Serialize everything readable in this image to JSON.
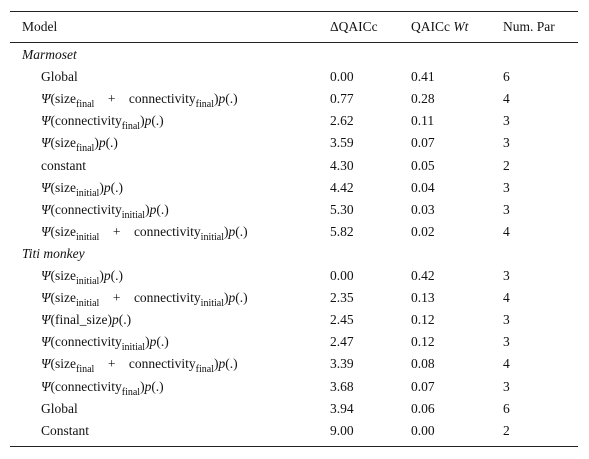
{
  "header": [
    [
      {
        "text": "Model"
      }
    ],
    [
      {
        "text": "ΔQAICc"
      }
    ],
    [
      {
        "text": "QAICc "
      },
      {
        "text": "Wt",
        "style": "italic"
      }
    ],
    [
      {
        "text": "Num. Par"
      }
    ]
  ],
  "groups": [
    {
      "label": "Marmoset",
      "rows": [
        {
          "model": [
            {
              "text": "Global"
            }
          ],
          "dqaicc": "0.00",
          "wt": "0.41",
          "par": "6"
        },
        {
          "model": [
            {
              "text": "Ψ",
              "style": "italic"
            },
            {
              "text": "(size"
            },
            {
              "text": "final",
              "style": "sub"
            },
            {
              "text": "    +    connectivity"
            },
            {
              "text": "final",
              "style": "sub"
            },
            {
              "text": ")"
            },
            {
              "text": "p",
              "style": "italic"
            },
            {
              "text": "(.)"
            }
          ],
          "dqaicc": "0.77",
          "wt": "0.28",
          "par": "4"
        },
        {
          "model": [
            {
              "text": "Ψ",
              "style": "italic"
            },
            {
              "text": "(connectivity"
            },
            {
              "text": "final",
              "style": "sub"
            },
            {
              "text": ")"
            },
            {
              "text": "p",
              "style": "italic"
            },
            {
              "text": "(.)"
            }
          ],
          "dqaicc": "2.62",
          "wt": "0.11",
          "par": "3"
        },
        {
          "model": [
            {
              "text": "Ψ",
              "style": "italic"
            },
            {
              "text": "(size"
            },
            {
              "text": "final",
              "style": "sub"
            },
            {
              "text": ")"
            },
            {
              "text": "p",
              "style": "italic"
            },
            {
              "text": "(.)"
            }
          ],
          "dqaicc": "3.59",
          "wt": "0.07",
          "par": "3"
        },
        {
          "model": [
            {
              "text": "constant"
            }
          ],
          "dqaicc": "4.30",
          "wt": "0.05",
          "par": "2"
        },
        {
          "model": [
            {
              "text": "Ψ",
              "style": "italic"
            },
            {
              "text": "(size"
            },
            {
              "text": "initial",
              "style": "sub"
            },
            {
              "text": ")"
            },
            {
              "text": "p",
              "style": "italic"
            },
            {
              "text": "(.)"
            }
          ],
          "dqaicc": "4.42",
          "wt": "0.04",
          "par": "3"
        },
        {
          "model": [
            {
              "text": "Ψ",
              "style": "italic"
            },
            {
              "text": "(connectivity"
            },
            {
              "text": "initial",
              "style": "sub"
            },
            {
              "text": ")"
            },
            {
              "text": "p",
              "style": "italic"
            },
            {
              "text": "(.)"
            }
          ],
          "dqaicc": "5.30",
          "wt": "0.03",
          "par": "3"
        },
        {
          "model": [
            {
              "text": "Ψ",
              "style": "italic"
            },
            {
              "text": "(size"
            },
            {
              "text": "initial",
              "style": "sub"
            },
            {
              "text": "    +    connectivity"
            },
            {
              "text": "initial",
              "style": "sub"
            },
            {
              "text": ")"
            },
            {
              "text": "p",
              "style": "italic"
            },
            {
              "text": "(.)"
            }
          ],
          "dqaicc": "5.82",
          "wt": "0.02",
          "par": "4"
        }
      ]
    },
    {
      "label": "Titi monkey",
      "rows": [
        {
          "model": [
            {
              "text": "Ψ",
              "style": "italic"
            },
            {
              "text": "(size"
            },
            {
              "text": "initial",
              "style": "sub"
            },
            {
              "text": ")"
            },
            {
              "text": "p",
              "style": "italic"
            },
            {
              "text": "(.)"
            }
          ],
          "dqaicc": "0.00",
          "wt": "0.42",
          "par": "3"
        },
        {
          "model": [
            {
              "text": "Ψ",
              "style": "italic"
            },
            {
              "text": "(size"
            },
            {
              "text": "initial",
              "style": "sub"
            },
            {
              "text": "    +    connectivity"
            },
            {
              "text": "initial",
              "style": "sub"
            },
            {
              "text": ")"
            },
            {
              "text": "p",
              "style": "italic"
            },
            {
              "text": "(.)"
            }
          ],
          "dqaicc": "2.35",
          "wt": "0.13",
          "par": "4"
        },
        {
          "model": [
            {
              "text": "Ψ",
              "style": "italic"
            },
            {
              "text": "(final_size)"
            },
            {
              "text": "p",
              "style": "italic"
            },
            {
              "text": "(.)"
            }
          ],
          "dqaicc": "2.45",
          "wt": "0.12",
          "par": "3"
        },
        {
          "model": [
            {
              "text": "Ψ",
              "style": "italic"
            },
            {
              "text": "(connectivity"
            },
            {
              "text": "initial",
              "style": "sub"
            },
            {
              "text": ")"
            },
            {
              "text": "p",
              "style": "italic"
            },
            {
              "text": "(.)"
            }
          ],
          "dqaicc": "2.47",
          "wt": "0.12",
          "par": "3"
        },
        {
          "model": [
            {
              "text": "Ψ",
              "style": "italic"
            },
            {
              "text": "(size"
            },
            {
              "text": "final",
              "style": "sub"
            },
            {
              "text": "    +    connectivity"
            },
            {
              "text": "final",
              "style": "sub"
            },
            {
              "text": ")"
            },
            {
              "text": "p",
              "style": "italic"
            },
            {
              "text": "(.)"
            }
          ],
          "dqaicc": "3.39",
          "wt": "0.08",
          "par": "4"
        },
        {
          "model": [
            {
              "text": "Ψ",
              "style": "italic"
            },
            {
              "text": "(connectivity"
            },
            {
              "text": "final",
              "style": "sub"
            },
            {
              "text": ")"
            },
            {
              "text": "p",
              "style": "italic"
            },
            {
              "text": "(.)"
            }
          ],
          "dqaicc": "3.68",
          "wt": "0.07",
          "par": "3"
        },
        {
          "model": [
            {
              "text": "Global"
            }
          ],
          "dqaicc": "3.94",
          "wt": "0.06",
          "par": "6"
        },
        {
          "model": [
            {
              "text": "Constant"
            }
          ],
          "dqaicc": "9.00",
          "wt": "0.00",
          "par": "2"
        }
      ]
    }
  ]
}
